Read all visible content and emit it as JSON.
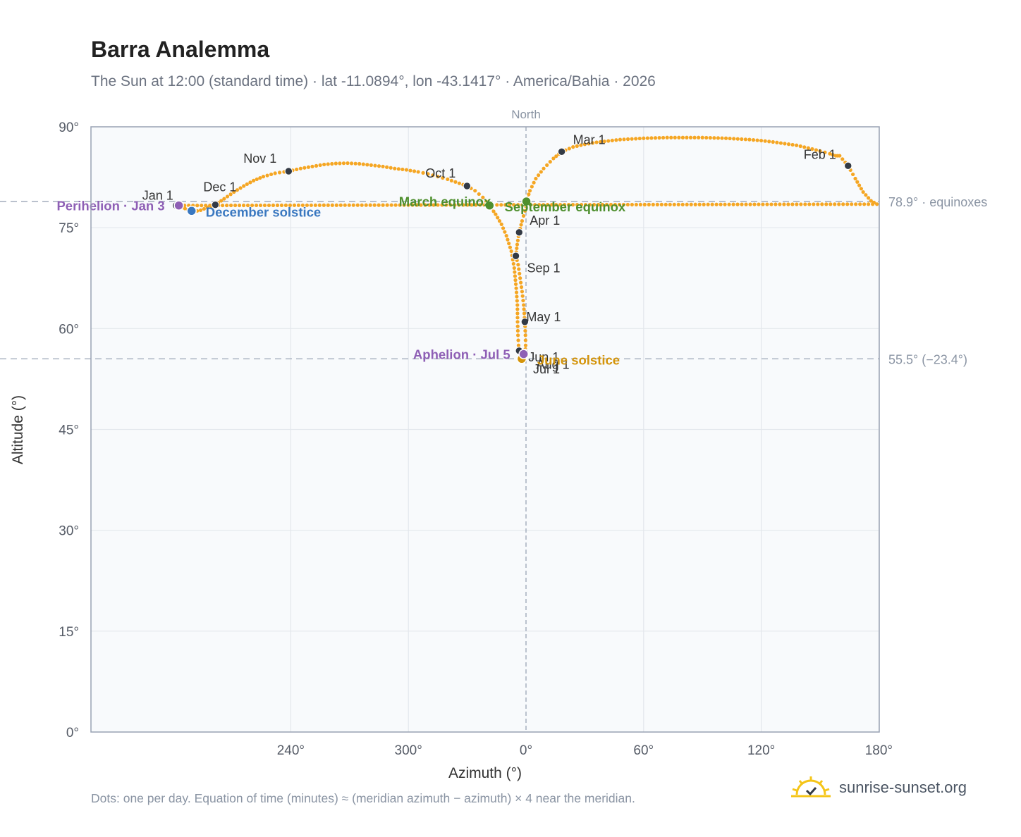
{
  "title": "Barra Analemma",
  "subtitle": "The Sun at 12:00 (standard time) · lat -11.0894°, lon -43.1417° · America/Bahia · 2026",
  "footnote": "Dots: one per day. Equation of time (minutes) ≈ (meridian azimuth − azimuth) × 4 near the meridian.",
  "brand": {
    "name": "sunrise-sunset.org",
    "icon": "sun-logo-icon"
  },
  "colors": {
    "curve": "#f5a623",
    "month": "#333a45",
    "solstice_dec": "#3a78c0",
    "solstice_jun": "#d4940a",
    "equinox": "#4e8f2e",
    "apsis": "#8e5fb5",
    "reference": "#9aa5b6",
    "plot_bg": "#f8fafc",
    "grid": "#e3e7ec",
    "frame": "#98a2b3"
  },
  "chart_data": {
    "type": "scatter",
    "title": "Barra Analemma",
    "xlabel": "Azimuth (°)",
    "ylabel": "Altitude (°)",
    "xlim": [
      140,
      160
    ],
    "ylim": [
      0,
      90
    ],
    "grid": true,
    "x_ticks": [
      {
        "value": 180,
        "label": "180°"
      },
      {
        "value": 240,
        "label": "240°"
      },
      {
        "value": 300,
        "label": "300°"
      },
      {
        "value": 0,
        "label": "0°"
      },
      {
        "value": 60,
        "label": "60°"
      },
      {
        "value": 120,
        "label": "120°"
      }
    ],
    "y_ticks": [
      {
        "value": 0,
        "label": "0°"
      },
      {
        "value": 15,
        "label": "15°"
      },
      {
        "value": 30,
        "label": "30°"
      },
      {
        "value": 45,
        "label": "45°"
      },
      {
        "value": 60,
        "label": "60°"
      },
      {
        "value": 75,
        "label": "75°"
      },
      {
        "value": 90,
        "label": "90°"
      }
    ],
    "north_label": "North",
    "reference_lines": [
      {
        "altitude": 78.9,
        "label": "78.9° · equinoxes"
      },
      {
        "altitude": 55.5,
        "label": "55.5° (−23.4°)"
      }
    ],
    "month_markers": [
      {
        "label": "Jan 1",
        "az": 181.5,
        "alt": 78.3
      },
      {
        "label": "Feb 1",
        "az": 164.3,
        "alt": 84.2
      },
      {
        "label": "Mar 1",
        "az": 18.2,
        "alt": 86.3
      },
      {
        "label": "Apr 1",
        "az": 356.5,
        "alt": 74.3
      },
      {
        "label": "May 1",
        "az": 359.4,
        "alt": 61.0
      },
      {
        "label": "Jun 1",
        "az": 356.5,
        "alt": 56.7
      },
      {
        "label": "Jul 1",
        "az": 358.2,
        "alt": 55.4
      },
      {
        "label": "Aug 1",
        "az": 359.5,
        "alt": 56.4
      },
      {
        "label": "Sep 1",
        "az": 354.8,
        "alt": 70.8
      },
      {
        "label": "Oct 1",
        "az": 329.9,
        "alt": 81.2
      },
      {
        "label": "Nov 1",
        "az": 238.9,
        "alt": 83.4
      },
      {
        "label": "Dec 1",
        "az": 201.5,
        "alt": 78.4
      }
    ],
    "events": [
      {
        "label": "December solstice",
        "az": 189.4,
        "alt": 77.5,
        "color": "#3a78c0"
      },
      {
        "label": "June solstice",
        "az": 357.8,
        "alt": 55.5,
        "color": "#d4940a"
      },
      {
        "label": "March equinox",
        "az": 341.4,
        "alt": 78.3,
        "color": "#4e8f2e"
      },
      {
        "label": "September equinox",
        "az": 0.2,
        "alt": 78.9,
        "color": "#4e8f2e"
      },
      {
        "label": "Perihelion · Jan 3",
        "az": 182.9,
        "alt": 78.3,
        "color": "#8e5fb5"
      },
      {
        "label": "Aphelion · Jul 5",
        "az": 358.8,
        "alt": 56.2,
        "color": "#8e5fb5"
      }
    ],
    "series": [
      {
        "points": [
          [
            160.0,
            85.7
          ],
          [
            164.3,
            84.2
          ],
          [
            168.0,
            82.3
          ],
          [
            172.0,
            80.3
          ],
          [
            176.0,
            79.0
          ],
          [
            179.0,
            78.5
          ],
          [
            181.5,
            78.3
          ],
          [
            184.5,
            78.0
          ],
          [
            187.5,
            77.7
          ],
          [
            190.5,
            77.4
          ],
          [
            194.0,
            77.6
          ],
          [
            197.5,
            78.0
          ],
          [
            201.5,
            78.4
          ],
          [
            206.0,
            79.3
          ],
          [
            211.0,
            80.3
          ],
          [
            216.0,
            81.2
          ],
          [
            221.0,
            82.0
          ],
          [
            226.0,
            82.6
          ],
          [
            232.0,
            83.1
          ],
          [
            238.9,
            83.4
          ],
          [
            245.0,
            83.8
          ],
          [
            251.0,
            84.1
          ],
          [
            257.0,
            84.4
          ],
          [
            263.0,
            84.55
          ],
          [
            269.0,
            84.6
          ],
          [
            275.0,
            84.5
          ],
          [
            281.0,
            84.3
          ],
          [
            287.0,
            84.1
          ],
          [
            293.0,
            83.8
          ],
          [
            299.0,
            83.6
          ],
          [
            305.0,
            83.3
          ],
          [
            310.0,
            83.0
          ],
          [
            315.0,
            82.6
          ],
          [
            320.0,
            82.2
          ],
          [
            324.0,
            81.8
          ],
          [
            329.9,
            81.2
          ],
          [
            334.0,
            80.5
          ],
          [
            338.0,
            79.5
          ],
          [
            341.4,
            78.3
          ],
          [
            344.5,
            77.0
          ],
          [
            347.5,
            75.5
          ],
          [
            350.0,
            73.8
          ],
          [
            352.5,
            71.5
          ],
          [
            354.0,
            69.0
          ],
          [
            355.0,
            66.0
          ],
          [
            355.6,
            63.5
          ],
          [
            355.7,
            61.0
          ],
          [
            355.9,
            59.0
          ],
          [
            356.2,
            57.5
          ],
          [
            356.5,
            56.7
          ],
          [
            357.2,
            56.0
          ],
          [
            357.8,
            55.5
          ],
          [
            358.2,
            55.4
          ],
          [
            358.8,
            56.2
          ],
          [
            359.2,
            56.5
          ],
          [
            359.5,
            56.4
          ],
          [
            359.8,
            57.5
          ],
          [
            359.7,
            59.0
          ],
          [
            359.4,
            61.0
          ],
          [
            358.8,
            63.5
          ],
          [
            358.0,
            65.5
          ],
          [
            357.0,
            67.5
          ],
          [
            356.0,
            69.5
          ],
          [
            354.8,
            70.8
          ],
          [
            355.5,
            72.5
          ],
          [
            356.5,
            74.3
          ],
          [
            358.0,
            76.0
          ],
          [
            359.5,
            77.5
          ],
          [
            0.2,
            78.9
          ],
          [
            2.0,
            80.5
          ],
          [
            5.0,
            82.3
          ],
          [
            9.0,
            83.8
          ],
          [
            14.0,
            85.3
          ],
          [
            18.2,
            86.3
          ],
          [
            24.0,
            87.0
          ],
          [
            30.0,
            87.4
          ],
          [
            36.0,
            87.7
          ],
          [
            42.0,
            87.9
          ],
          [
            48.0,
            88.1
          ],
          [
            54.0,
            88.2
          ],
          [
            60.0,
            88.3
          ],
          [
            66.0,
            88.35
          ],
          [
            72.0,
            88.4
          ],
          [
            78.0,
            88.4
          ],
          [
            84.0,
            88.4
          ],
          [
            90.0,
            88.4
          ],
          [
            96.0,
            88.35
          ],
          [
            102.0,
            88.3
          ],
          [
            108.0,
            88.2
          ],
          [
            114.0,
            88.1
          ],
          [
            120.0,
            87.95
          ],
          [
            126.0,
            87.75
          ],
          [
            132.0,
            87.5
          ],
          [
            138.0,
            87.25
          ],
          [
            144.0,
            86.85
          ],
          [
            150.0,
            86.4
          ],
          [
            155.0,
            86.0
          ],
          [
            158.0,
            85.7
          ]
        ]
      }
    ]
  }
}
